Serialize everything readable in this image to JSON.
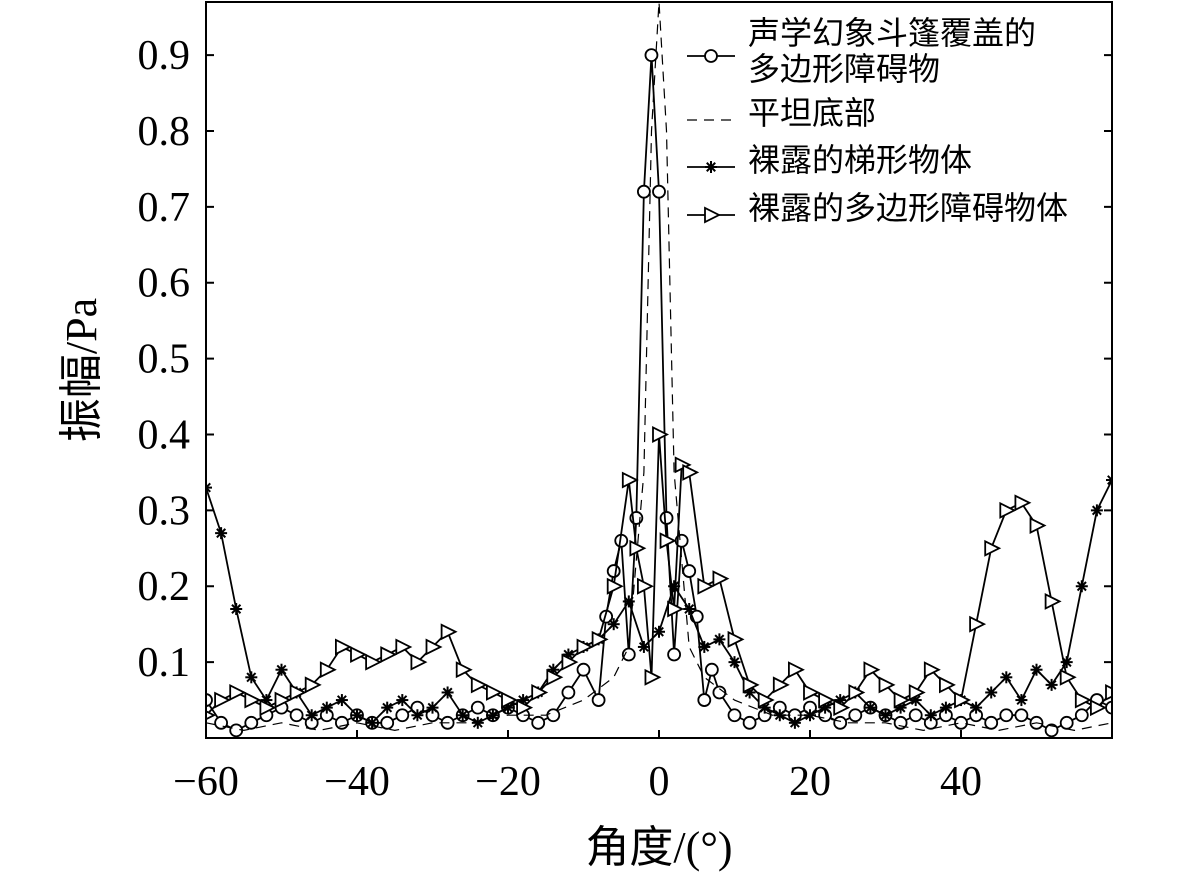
{
  "chart_data": {
    "type": "line",
    "xlabel": "角度/(°)",
    "ylabel": "振幅/Pa",
    "xlim": [
      -60,
      60
    ],
    "ylim": [
      0,
      0.97
    ],
    "xticks": [
      -60,
      -40,
      -20,
      0,
      20,
      40
    ],
    "xtick_labels": [
      "−60",
      "−40",
      "−20",
      "0",
      "20",
      "40"
    ],
    "yticks": [
      0.1,
      0.2,
      0.3,
      0.4,
      0.5,
      0.6,
      0.7,
      0.8,
      0.9
    ],
    "ytick_labels": [
      "0.1",
      "0.2",
      "0.3",
      "0.4",
      "0.5",
      "0.6",
      "0.7",
      "0.8",
      "0.9"
    ],
    "grid": false,
    "legend_position": "top-right",
    "legend_lines": [
      [
        "声学幻象斗篷覆盖的",
        "多边形障碍物"
      ],
      [
        "平坦底部"
      ],
      [
        "裸露的梯形物体"
      ],
      [
        "裸露的多边形障碍物体"
      ]
    ],
    "series": [
      {
        "name": "声学幻象斗篷覆盖的多边形障碍物",
        "marker": "circle",
        "style": "solid",
        "x": [
          -60,
          -58,
          -56,
          -54,
          -52,
          -50,
          -48,
          -46,
          -44,
          -42,
          -40,
          -38,
          -36,
          -34,
          -32,
          -30,
          -28,
          -26,
          -24,
          -22,
          -20,
          -18,
          -16,
          -14,
          -12,
          -10,
          -8,
          -7,
          -6,
          -5,
          -4,
          -3,
          -2,
          -1,
          0,
          1,
          2,
          3,
          4,
          5,
          6,
          7,
          8,
          10,
          12,
          14,
          16,
          18,
          20,
          22,
          24,
          26,
          28,
          30,
          32,
          34,
          36,
          38,
          40,
          42,
          44,
          46,
          48,
          50,
          52,
          54,
          56,
          58,
          60
        ],
        "y": [
          0.05,
          0.02,
          0.01,
          0.02,
          0.03,
          0.04,
          0.03,
          0.02,
          0.03,
          0.02,
          0.03,
          0.02,
          0.02,
          0.03,
          0.04,
          0.03,
          0.02,
          0.03,
          0.04,
          0.03,
          0.04,
          0.03,
          0.02,
          0.03,
          0.06,
          0.09,
          0.05,
          0.16,
          0.22,
          0.26,
          0.11,
          0.29,
          0.72,
          0.9,
          0.72,
          0.29,
          0.11,
          0.26,
          0.22,
          0.16,
          0.05,
          0.09,
          0.06,
          0.03,
          0.02,
          0.03,
          0.04,
          0.03,
          0.04,
          0.03,
          0.02,
          0.03,
          0.04,
          0.03,
          0.02,
          0.03,
          0.02,
          0.03,
          0.02,
          0.03,
          0.02,
          0.03,
          0.03,
          0.02,
          0.01,
          0.02,
          0.03,
          0.05,
          0.04
        ]
      },
      {
        "name": "平坦底部",
        "marker": "none",
        "style": "dashed",
        "x": [
          -60,
          -55,
          -50,
          -45,
          -40,
          -35,
          -30,
          -25,
          -20,
          -15,
          -10,
          -6,
          -4,
          -2,
          -1,
          0,
          1,
          2,
          4,
          6,
          10,
          15,
          20,
          25,
          30,
          35,
          40,
          45,
          50,
          55,
          60
        ],
        "y": [
          0.02,
          0.01,
          0.02,
          0.01,
          0.02,
          0.01,
          0.02,
          0.02,
          0.03,
          0.03,
          0.05,
          0.08,
          0.12,
          0.35,
          0.8,
          0.97,
          0.8,
          0.35,
          0.12,
          0.08,
          0.05,
          0.03,
          0.03,
          0.02,
          0.02,
          0.01,
          0.02,
          0.01,
          0.02,
          0.01,
          0.02
        ]
      },
      {
        "name": "裸露的梯形物体",
        "marker": "asterisk",
        "style": "solid",
        "x": [
          -60,
          -58,
          -56,
          -54,
          -52,
          -50,
          -48,
          -46,
          -44,
          -42,
          -40,
          -38,
          -36,
          -34,
          -32,
          -30,
          -28,
          -26,
          -24,
          -22,
          -20,
          -18,
          -16,
          -14,
          -12,
          -10,
          -8,
          -6,
          -4,
          -2,
          0,
          2,
          4,
          6,
          8,
          10,
          12,
          14,
          16,
          18,
          20,
          22,
          24,
          26,
          28,
          30,
          32,
          34,
          36,
          38,
          40,
          42,
          44,
          46,
          48,
          50,
          52,
          54,
          56,
          58,
          60
        ],
        "y": [
          0.33,
          0.27,
          0.17,
          0.08,
          0.05,
          0.09,
          0.06,
          0.03,
          0.04,
          0.05,
          0.03,
          0.02,
          0.04,
          0.05,
          0.03,
          0.04,
          0.06,
          0.03,
          0.02,
          0.03,
          0.04,
          0.05,
          0.06,
          0.09,
          0.11,
          0.12,
          0.13,
          0.15,
          0.18,
          0.12,
          0.14,
          0.2,
          0.17,
          0.12,
          0.13,
          0.1,
          0.06,
          0.04,
          0.03,
          0.02,
          0.03,
          0.04,
          0.05,
          0.06,
          0.04,
          0.03,
          0.04,
          0.05,
          0.03,
          0.04,
          0.05,
          0.04,
          0.06,
          0.08,
          0.05,
          0.09,
          0.07,
          0.1,
          0.2,
          0.3,
          0.34
        ]
      },
      {
        "name": "裸露的多边形障碍物体",
        "marker": "triangle-right",
        "style": "solid",
        "x": [
          -60,
          -58,
          -56,
          -54,
          -52,
          -50,
          -48,
          -46,
          -44,
          -42,
          -40,
          -38,
          -36,
          -34,
          -32,
          -30,
          -28,
          -26,
          -24,
          -22,
          -20,
          -18,
          -16,
          -14,
          -12,
          -10,
          -8,
          -6,
          -4,
          -3,
          -2,
          -1,
          0,
          1,
          2,
          3,
          4,
          6,
          8,
          10,
          12,
          14,
          16,
          18,
          20,
          22,
          24,
          26,
          28,
          30,
          32,
          34,
          36,
          38,
          40,
          42,
          44,
          46,
          48,
          50,
          52,
          54,
          56,
          58,
          60
        ],
        "y": [
          0.03,
          0.05,
          0.06,
          0.05,
          0.04,
          0.05,
          0.06,
          0.07,
          0.09,
          0.12,
          0.11,
          0.1,
          0.11,
          0.12,
          0.1,
          0.12,
          0.14,
          0.09,
          0.07,
          0.06,
          0.05,
          0.04,
          0.06,
          0.08,
          0.1,
          0.12,
          0.13,
          0.2,
          0.34,
          0.25,
          0.2,
          0.08,
          0.4,
          0.26,
          0.17,
          0.36,
          0.35,
          0.2,
          0.21,
          0.13,
          0.07,
          0.05,
          0.07,
          0.09,
          0.06,
          0.05,
          0.04,
          0.06,
          0.09,
          0.07,
          0.05,
          0.06,
          0.09,
          0.07,
          0.05,
          0.15,
          0.25,
          0.3,
          0.31,
          0.28,
          0.18,
          0.08,
          0.05,
          0.04,
          0.06
        ]
      }
    ]
  }
}
